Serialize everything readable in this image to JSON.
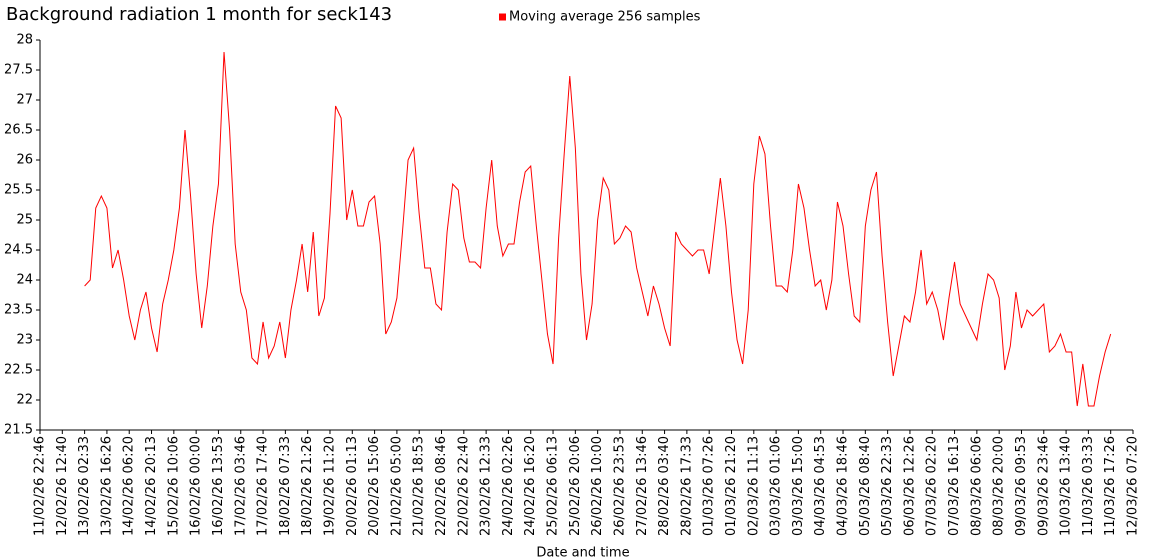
{
  "chart_data": {
    "type": "line",
    "title": "Background radiation 1 month for seck143",
    "x_label": "Date and time",
    "legend": "top",
    "grid": false,
    "xlim": [
      0,
      49
    ],
    "xticks": [
      {
        "value": 0,
        "label": "11/02/26 22:46"
      },
      {
        "value": 1,
        "label": "12/02/26 12:40"
      },
      {
        "value": 2,
        "label": "13/02/26 02:33"
      },
      {
        "value": 3,
        "label": "13/02/26 16:26"
      },
      {
        "value": 4,
        "label": "14/02/26 06:20"
      },
      {
        "value": 5,
        "label": "14/02/26 20:13"
      },
      {
        "value": 6,
        "label": "15/02/26 10:06"
      },
      {
        "value": 7,
        "label": "16/02/26 00:00"
      },
      {
        "value": 8,
        "label": "16/02/26 13:53"
      },
      {
        "value": 9,
        "label": "17/02/26 03:46"
      },
      {
        "value": 10,
        "label": "17/02/26 17:40"
      },
      {
        "value": 11,
        "label": "18/02/26 07:33"
      },
      {
        "value": 12,
        "label": "18/02/26 21:26"
      },
      {
        "value": 13,
        "label": "19/02/26 11:20"
      },
      {
        "value": 14,
        "label": "20/02/26 01:13"
      },
      {
        "value": 15,
        "label": "20/02/26 15:06"
      },
      {
        "value": 16,
        "label": "21/02/26 05:00"
      },
      {
        "value": 17,
        "label": "21/02/26 18:53"
      },
      {
        "value": 18,
        "label": "22/02/26 08:46"
      },
      {
        "value": 19,
        "label": "22/02/26 22:40"
      },
      {
        "value": 20,
        "label": "23/02/26 12:33"
      },
      {
        "value": 21,
        "label": "24/02/26 02:26"
      },
      {
        "value": 22,
        "label": "24/02/26 16:20"
      },
      {
        "value": 23,
        "label": "25/02/26 06:13"
      },
      {
        "value": 24,
        "label": "25/02/26 20:06"
      },
      {
        "value": 25,
        "label": "26/02/26 10:00"
      },
      {
        "value": 26,
        "label": "26/02/26 23:53"
      },
      {
        "value": 27,
        "label": "27/02/26 13:46"
      },
      {
        "value": 28,
        "label": "28/02/26 03:40"
      },
      {
        "value": 29,
        "label": "28/02/26 17:33"
      },
      {
        "value": 30,
        "label": "01/03/26 07:26"
      },
      {
        "value": 31,
        "label": "01/03/26 21:20"
      },
      {
        "value": 32,
        "label": "02/03/26 11:13"
      },
      {
        "value": 33,
        "label": "03/03/26 01:06"
      },
      {
        "value": 34,
        "label": "03/03/26 15:00"
      },
      {
        "value": 35,
        "label": "04/03/26 04:53"
      },
      {
        "value": 36,
        "label": "04/03/26 18:46"
      },
      {
        "value": 37,
        "label": "05/03/26 08:40"
      },
      {
        "value": 38,
        "label": "05/03/26 22:33"
      },
      {
        "value": 39,
        "label": "06/03/26 12:26"
      },
      {
        "value": 40,
        "label": "07/03/26 02:20"
      },
      {
        "value": 41,
        "label": "07/03/26 16:13"
      },
      {
        "value": 42,
        "label": "08/03/26 06:06"
      },
      {
        "value": 43,
        "label": "08/03/26 20:00"
      },
      {
        "value": 44,
        "label": "09/03/26 09:53"
      },
      {
        "value": 45,
        "label": "09/03/26 23:46"
      },
      {
        "value": 46,
        "label": "10/03/26 13:40"
      },
      {
        "value": 47,
        "label": "11/03/26 03:33"
      },
      {
        "value": 48,
        "label": "11/03/26 17:26"
      },
      {
        "value": 49,
        "label": "12/03/26 07:20"
      }
    ],
    "ylim": [
      21.5,
      28
    ],
    "yticks": [
      21.5,
      22,
      22.5,
      23,
      23.5,
      24,
      24.5,
      25,
      25.5,
      26,
      26.5,
      27,
      27.5,
      28
    ],
    "x": [
      2,
      2.25,
      2.5,
      2.75,
      3,
      3.25,
      3.5,
      3.75,
      4,
      4.25,
      4.5,
      4.75,
      5,
      5.25,
      5.5,
      5.75,
      6,
      6.25,
      6.5,
      6.75,
      7,
      7.25,
      7.5,
      7.75,
      8,
      8.25,
      8.5,
      8.75,
      9,
      9.25,
      9.5,
      9.75,
      10,
      10.25,
      10.5,
      10.75,
      11,
      11.25,
      11.5,
      11.75,
      12,
      12.25,
      12.5,
      12.75,
      13,
      13.25,
      13.5,
      13.75,
      14,
      14.25,
      14.5,
      14.75,
      15,
      15.25,
      15.5,
      15.75,
      16,
      16.25,
      16.5,
      16.75,
      17,
      17.25,
      17.5,
      17.75,
      18,
      18.25,
      18.5,
      18.75,
      19,
      19.25,
      19.5,
      19.75,
      20,
      20.25,
      20.5,
      20.75,
      21,
      21.25,
      21.5,
      21.75,
      22,
      22.25,
      22.5,
      22.75,
      23,
      23.25,
      23.5,
      23.75,
      24,
      24.25,
      24.5,
      24.75,
      25,
      25.25,
      25.5,
      25.75,
      26,
      26.25,
      26.5,
      26.75,
      27,
      27.25,
      27.5,
      27.75,
      28,
      28.25,
      28.5,
      28.75,
      29,
      29.25,
      29.5,
      29.75,
      30,
      30.25,
      30.5,
      30.75,
      31,
      31.25,
      31.5,
      31.75,
      32,
      32.25,
      32.5,
      32.75,
      33,
      33.25,
      33.5,
      33.75,
      34,
      34.25,
      34.5,
      34.75,
      35,
      35.25,
      35.5,
      35.75,
      36,
      36.25,
      36.5,
      36.75,
      37,
      37.25,
      37.5,
      37.75,
      38,
      38.25,
      38.5,
      38.75,
      39,
      39.25,
      39.5,
      39.75,
      40,
      40.25,
      40.5,
      40.75,
      41,
      41.25,
      41.5,
      41.75,
      42,
      42.25,
      42.5,
      42.75,
      43,
      43.25,
      43.5,
      43.75,
      44,
      44.25,
      44.5,
      44.75,
      45,
      45.25,
      45.5,
      45.75,
      46,
      46.25,
      46.5,
      46.75,
      47,
      47.25,
      47.5,
      47.75,
      48
    ],
    "series": [
      {
        "name": "Moving average 256 samples",
        "color": "#ff0000",
        "values": [
          23.9,
          24.0,
          25.2,
          25.4,
          25.2,
          24.2,
          24.5,
          24.0,
          23.4,
          23.0,
          23.5,
          23.8,
          23.2,
          22.8,
          23.6,
          24.0,
          24.5,
          25.2,
          26.5,
          25.4,
          24.1,
          23.2,
          23.9,
          24.9,
          25.6,
          27.8,
          26.5,
          24.6,
          23.8,
          23.5,
          22.7,
          22.6,
          23.3,
          22.7,
          22.9,
          23.3,
          22.7,
          23.5,
          24.0,
          24.6,
          23.8,
          24.8,
          23.4,
          23.7,
          25.1,
          26.9,
          26.7,
          25.0,
          25.5,
          24.9,
          24.9,
          25.3,
          25.4,
          24.6,
          23.1,
          23.3,
          23.7,
          24.8,
          26.0,
          26.2,
          25.1,
          24.2,
          24.2,
          23.6,
          23.5,
          24.8,
          25.6,
          25.5,
          24.7,
          24.3,
          24.3,
          24.2,
          25.2,
          26.0,
          24.9,
          24.4,
          24.6,
          24.6,
          25.3,
          25.8,
          25.9,
          24.9,
          24.0,
          23.1,
          22.6,
          24.7,
          26.1,
          27.4,
          26.2,
          24.1,
          23.0,
          23.6,
          25.0,
          25.7,
          25.5,
          24.6,
          24.7,
          24.9,
          24.8,
          24.2,
          23.8,
          23.4,
          23.9,
          23.6,
          23.2,
          22.9,
          24.8,
          24.6,
          24.5,
          24.4,
          24.5,
          24.5,
          24.1,
          24.9,
          25.7,
          24.9,
          23.8,
          23.0,
          22.6,
          23.5,
          25.6,
          26.4,
          26.1,
          24.9,
          23.9,
          23.9,
          23.8,
          24.5,
          25.6,
          25.2,
          24.5,
          23.9,
          24.0,
          23.5,
          24.0,
          25.3,
          24.9,
          24.1,
          23.4,
          23.3,
          24.9,
          25.5,
          25.8,
          24.4,
          23.3,
          22.4,
          22.9,
          23.4,
          23.3,
          23.8,
          24.5,
          23.6,
          23.8,
          23.5,
          23.0,
          23.7,
          24.3,
          23.6,
          23.4,
          23.2,
          23.0,
          23.6,
          24.1,
          24.0,
          23.7,
          22.5,
          22.9,
          23.8,
          23.2,
          23.5,
          23.4,
          23.5,
          23.6,
          22.8,
          22.9,
          23.1,
          22.8,
          22.8,
          21.9,
          22.6,
          21.9,
          21.9,
          22.4,
          22.8,
          23.1
        ]
      }
    ]
  }
}
